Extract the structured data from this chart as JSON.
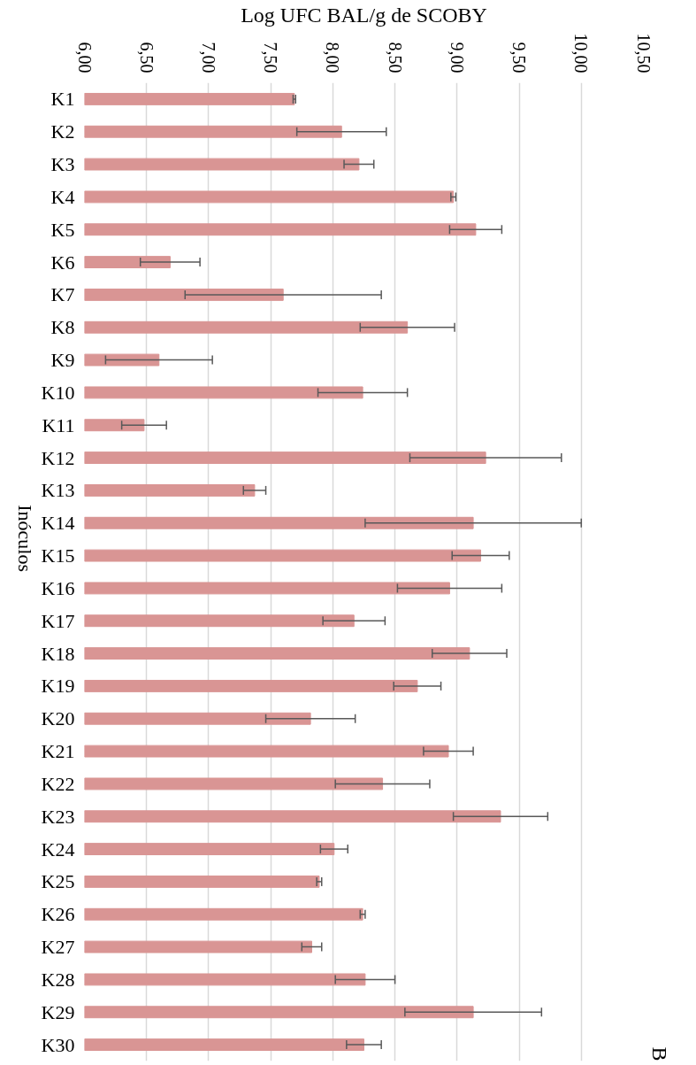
{
  "chart_data": {
    "type": "bar",
    "orientation": "horizontal",
    "xlabel": "Log UFC BAL/g de SCOBY",
    "ylabel": "Inóculos",
    "annotations": [
      "B"
    ],
    "categories": [
      "K1",
      "K2",
      "K3",
      "K4",
      "K5",
      "K6",
      "K7",
      "K8",
      "K9",
      "K10",
      "K11",
      "K12",
      "K13",
      "K14",
      "K15",
      "K16",
      "K17",
      "K18",
      "K19",
      "K20",
      "K21",
      "K22",
      "K23",
      "K24",
      "K25",
      "K26",
      "K27",
      "K28",
      "K29",
      "K30"
    ],
    "values": [
      7.69,
      8.07,
      8.21,
      8.97,
      9.15,
      6.69,
      7.6,
      8.6,
      6.6,
      8.24,
      6.48,
      9.23,
      7.37,
      9.13,
      9.19,
      8.94,
      8.17,
      9.1,
      8.68,
      7.82,
      8.93,
      8.4,
      9.35,
      8.01,
      7.89,
      8.24,
      7.83,
      8.26,
      9.13,
      8.25
    ],
    "errors": [
      0.01,
      0.36,
      0.12,
      0.02,
      0.21,
      0.24,
      0.79,
      0.38,
      0.43,
      0.36,
      0.18,
      0.61,
      0.09,
      0.87,
      0.23,
      0.42,
      0.25,
      0.3,
      0.19,
      0.36,
      0.2,
      0.38,
      0.38,
      0.11,
      0.02,
      0.02,
      0.08,
      0.24,
      0.55,
      0.14
    ],
    "color": "#d99594",
    "xlim": [
      6,
      10.5
    ],
    "xticks": [
      {
        "value": 6,
        "label": "6,00"
      },
      {
        "value": 6.5,
        "label": "6,50"
      },
      {
        "value": 7,
        "label": "7,00"
      },
      {
        "value": 7.5,
        "label": "7,50"
      },
      {
        "value": 8,
        "label": "8,00"
      },
      {
        "value": 8.5,
        "label": "8,50"
      },
      {
        "value": 9,
        "label": "9,00"
      },
      {
        "value": 9.5,
        "label": "9,50"
      },
      {
        "value": 10,
        "label": "10,00"
      },
      {
        "value": 10.5,
        "label": "10,50"
      }
    ],
    "grid": "x"
  }
}
